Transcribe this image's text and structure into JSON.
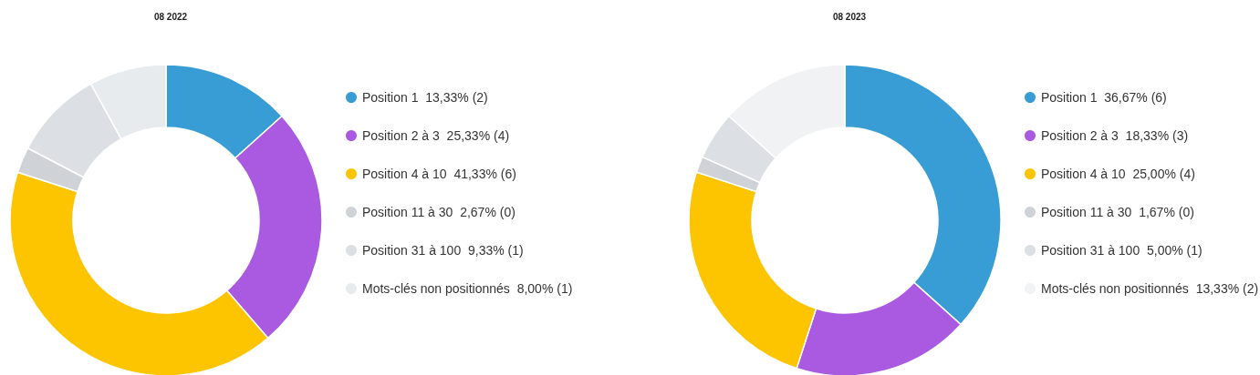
{
  "chart_data": [
    {
      "type": "donut",
      "title": "08 2022",
      "categories": [
        "Position 1",
        "Position 2 à 3",
        "Position 4 à 10",
        "Position 11 à 30",
        "Position 31 à 100",
        "Mots-clés non positionnés"
      ],
      "values": [
        13.33,
        25.33,
        41.33,
        2.67,
        9.33,
        8.0
      ],
      "value_labels": [
        "13,33% (2)",
        "25,33% (4)",
        "41,33% (6)",
        "2,67% (0)",
        "9,33% (1)",
        "8,00% (1)"
      ],
      "colors": [
        "#379dd4",
        "#a95ae0",
        "#fdc400",
        "#cfd3d8",
        "#dcdfe3",
        "#e8ebee"
      ],
      "legend": "right"
    },
    {
      "type": "donut",
      "title": "08 2023",
      "categories": [
        "Position 1",
        "Position 2 à 3",
        "Position 4 à 10",
        "Position 11 à 30",
        "Position 31 à 100",
        "Mots-clés non positionnés"
      ],
      "values": [
        36.67,
        18.33,
        25.0,
        1.67,
        5.0,
        13.33
      ],
      "value_labels": [
        "36,67% (6)",
        "18,33% (3)",
        "25,00% (4)",
        "1,67% (0)",
        "5,00% (1)",
        "13,33% (2)"
      ],
      "colors": [
        "#379dd4",
        "#a95ae0",
        "#fdc400",
        "#cfd3d8",
        "#dcdfe3",
        "#f0f2f4"
      ],
      "legend": "right"
    }
  ]
}
